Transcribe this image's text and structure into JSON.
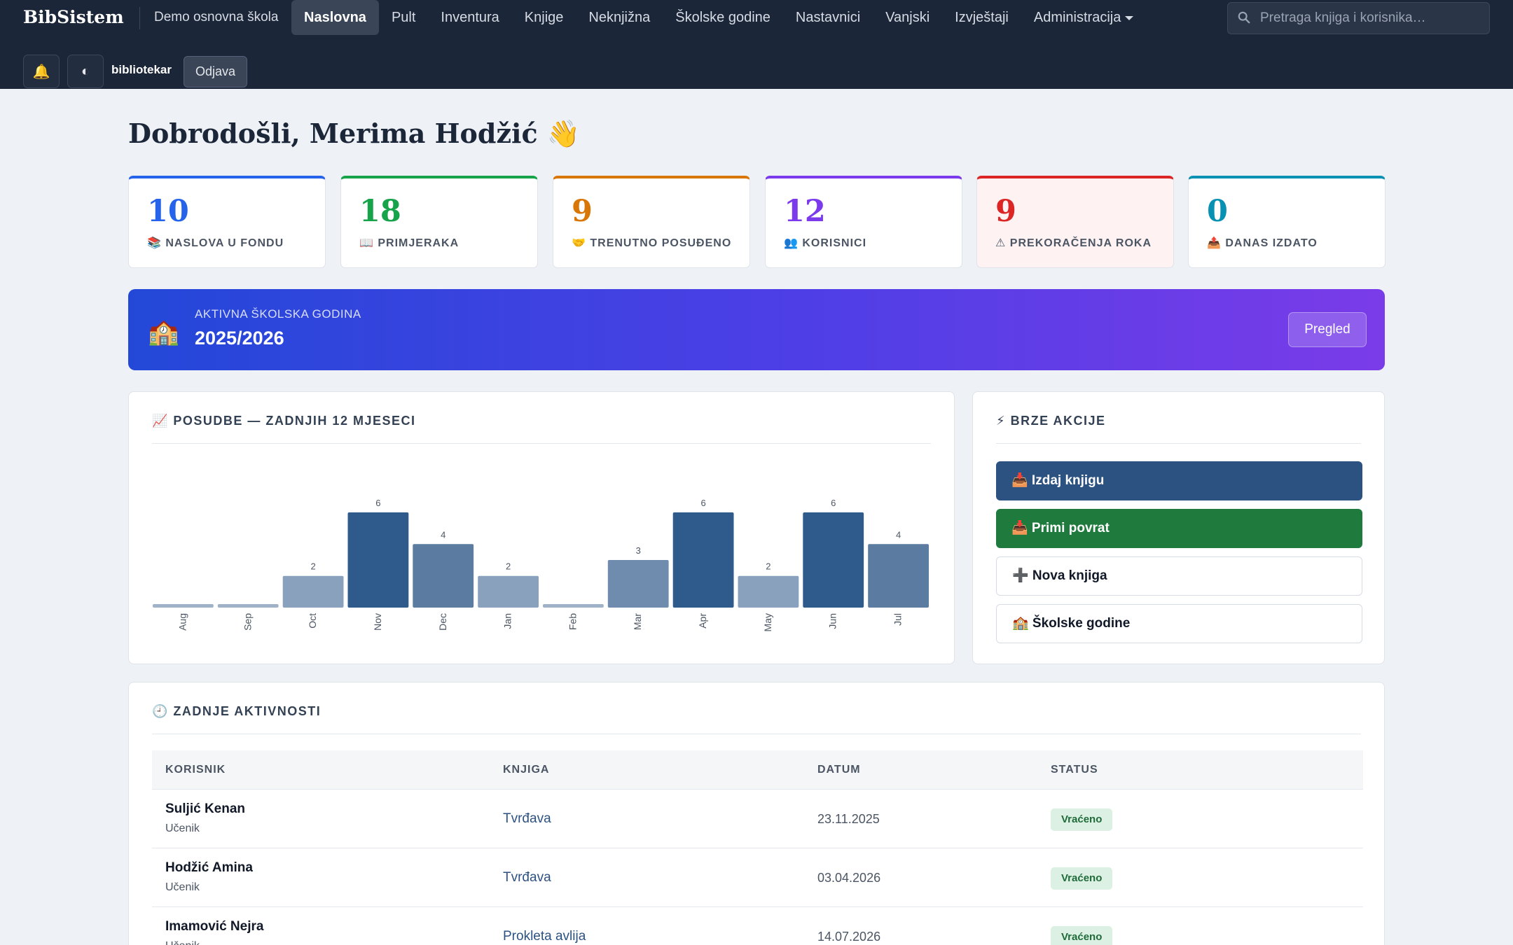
{
  "nav": {
    "brand": "BibSistem",
    "school": "Demo osnovna škola",
    "links": [
      "Naslovna",
      "Pult",
      "Inventura",
      "Knjige",
      "Neknjižna",
      "Školske godine",
      "Nastavnici",
      "Vanjski",
      "Izvještaji",
      "Administracija"
    ],
    "active": "Naslovna",
    "search_placeholder": "Pretraga knjiga i korisnika…",
    "user": "bibliotekar",
    "logout": "Odjava",
    "bell_icon": "🔔",
    "theme_icon": "◐"
  },
  "welcome": "Dobrodošli, Merima Hodžić 👋",
  "stats": [
    {
      "value": "10",
      "label": "📚 NASLOVA U FONDU",
      "color": "#2563eb"
    },
    {
      "value": "18",
      "label": "📖 PRIMJERAKA",
      "color": "#16a34a"
    },
    {
      "value": "9",
      "label": "🤝 TRENUTNO POSUĐENO",
      "color": "#d97706"
    },
    {
      "value": "12",
      "label": "👥 KORISNICI",
      "color": "#7c3aed"
    },
    {
      "value": "9",
      "label": "⚠ PREKORAČENJA ROKA",
      "color": "#dc2626"
    },
    {
      "value": "0",
      "label": "📤 DANAS IZDATO",
      "color": "#0891b2"
    }
  ],
  "banner": {
    "icon": "🏫",
    "subtitle": "AKTIVNA ŠKOLSKA GODINA",
    "value": "2025/2026",
    "button": "Pregled"
  },
  "loans_panel": {
    "title": "📈 POSUDBE — ZADNJIH 12 MJESECI"
  },
  "chart_data": {
    "type": "bar",
    "categories": [
      "Aug",
      "Sep",
      "Oct",
      "Nov",
      "Dec",
      "Jan",
      "Feb",
      "Mar",
      "Apr",
      "May",
      "Jun",
      "Jul"
    ],
    "values": [
      0,
      0,
      2,
      6,
      4,
      2,
      0,
      3,
      6,
      2,
      6,
      4
    ],
    "data_labels": [
      "",
      "",
      "2",
      "6",
      "4",
      "2",
      "",
      "3",
      "6",
      "2",
      "6",
      "4"
    ],
    "ylim": [
      0,
      6
    ],
    "grid": false,
    "legend": "none"
  },
  "quick_actions": {
    "title": "⚡ BRZE AKCIJE",
    "items": [
      {
        "label": "📥 Izdaj knjigu",
        "style": "primary"
      },
      {
        "label": "📥 Primi povrat",
        "style": "success"
      },
      {
        "label": "➕ Nova knjiga",
        "style": "outline"
      },
      {
        "label": "🏫 Školske godine",
        "style": "outline"
      }
    ]
  },
  "activity": {
    "title": "🕘 ZADNJE AKTIVNOSTI",
    "columns": [
      "KORISNIK",
      "KNJIGA",
      "DATUM",
      "STATUS"
    ],
    "rows": [
      {
        "name": "Suljić Kenan",
        "role": "Učenik",
        "book": "Tvrđava",
        "date": "23.11.2025",
        "status": "Vraćeno"
      },
      {
        "name": "Hodžić Amina",
        "role": "Učenik",
        "book": "Tvrđava",
        "date": "03.04.2026",
        "status": "Vraćeno"
      },
      {
        "name": "Imamović Nejra",
        "role": "Učenik",
        "book": "Prokleta avlija",
        "date": "14.07.2026",
        "status": "Vraćeno"
      }
    ]
  }
}
